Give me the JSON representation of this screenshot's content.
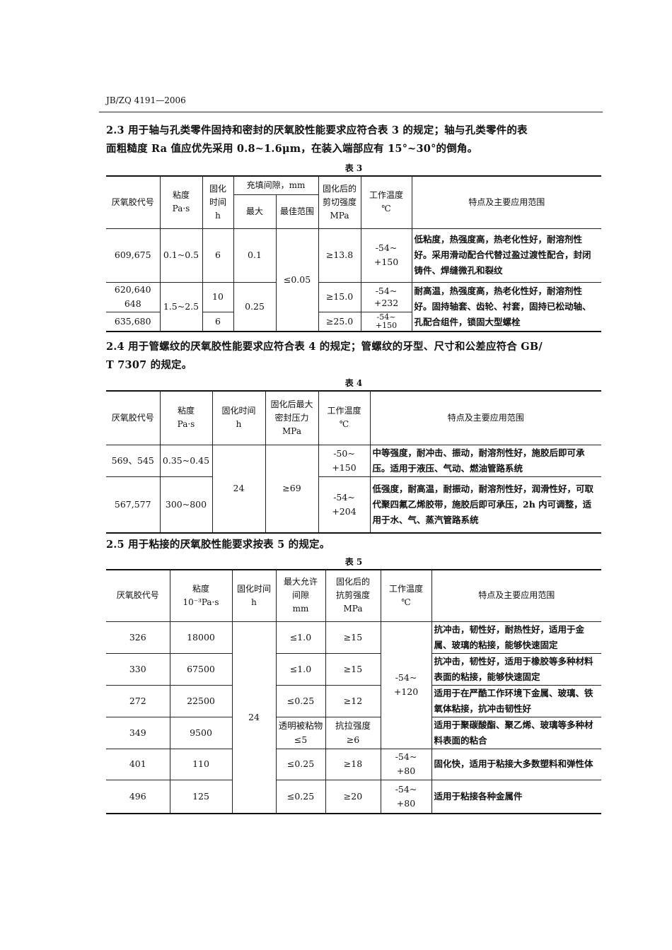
{
  "header": "JB/ZQ 4191—2006",
  "s23": {
    "line1": "2.3  用于轴与孔类零件固持和密封的厌氧胶性能要求应符合表 3 的规定；轴与孔类零件的表",
    "line2": "面粗糙度 Ra 值应优先采用 0.8~1.6μm，在装入端部应有 15°~30°的倒角。"
  },
  "t3": {
    "caption": "表 3",
    "h": {
      "code": "厌氧胶代号",
      "visc": "粘度",
      "visc_u": "Pa·s",
      "time": "固化",
      "time2": "时间",
      "time_u": "h",
      "gap": "充填间隙，mm",
      "max": "最大",
      "best": "最佳范围",
      "shear": "固化后的",
      "shear2": "剪切强度",
      "shear_u": "MPa",
      "temp": "工作温度",
      "temp_u": "℃",
      "desc": "特点及主要应用范围"
    },
    "r1": {
      "code": "609,675",
      "visc": "0.1~0.5",
      "time": "6",
      "max": "0.1",
      "best": "≤0.05",
      "shear": "≥13.8",
      "temp": "-54~",
      "temp2": "+150",
      "desc": "低粘度，热强度高，热老化性好，耐溶剂性好。采用滑动配合代替过盈过渡性配合，封闭铸件、焊缝微孔和裂纹"
    },
    "r2": {
      "code": "620,640",
      "code2": "648",
      "visc": "1.5~2.5",
      "time": "10",
      "max": "0.25",
      "shear": "≥15.0",
      "temp": "-54~",
      "temp2": "+232",
      "desc": "耐高温，热强度高，热老化性好，耐溶剂性好。固持轴套、齿轮、衬套，固持已松动轴、孔配合组件，锁固大型螺栓"
    },
    "r3": {
      "code": "635,680",
      "time": "6",
      "shear": "≥25.0",
      "temp": "-54~",
      "temp2": "+150"
    }
  },
  "s24": {
    "line1": "2.4  用于管螺纹的厌氧胶性能要求应符合表 4 的规定；管螺纹的牙型、尺寸和公差应符合 GB/",
    "line2": "T 7307 的规定。"
  },
  "t4": {
    "caption": "表 4",
    "h": {
      "code": "厌氧胶代号",
      "visc": "粘度",
      "visc_u": "Pa·s",
      "time": "固化时间",
      "time_u": "h",
      "press": "固化后最大",
      "press2": "密封压力",
      "press_u": "MPa",
      "temp": "工作温度",
      "temp_u": "℃",
      "desc": "特点及主要应用范围"
    },
    "r1": {
      "code": "569、545",
      "visc": "0.35~0.45",
      "time": "24",
      "press": "≥69",
      "temp": "-50~",
      "temp2": "+150",
      "desc": "中等强度，耐冲击、振动，耐溶剂性好，施胶后即可承压。适用于液压、气动、燃油管路系统"
    },
    "r2": {
      "code": "567,577",
      "visc": "300~800",
      "temp": "-54~",
      "temp2": "+204",
      "desc": "低强度，耐高温，耐振动，耐溶剂性好，润滑性好，可取代聚四氟乙烯胶带，施胶后即可承压，2h 内可调整，适用于水、气、蒸汽管路系统"
    }
  },
  "s25": {
    "line1": "2.5  用于粘接的厌氧胶性能要求按表 5 的规定。"
  },
  "t5": {
    "caption": "表 5",
    "h": {
      "code": "厌氧胶代号",
      "visc": "粘度",
      "visc_u": "10⁻³Pa·s",
      "time": "固化时间",
      "time_u": "h",
      "gap": "最大允许",
      "gap2": "间隙",
      "gap_u": "mm",
      "shear": "固化后的",
      "shear2": "抗剪强度",
      "shear_u": "MPa",
      "temp": "工作温度",
      "temp_u": "℃",
      "desc": "特点及主要应用范围"
    },
    "time": "24",
    "temp_a": "-54~",
    "temp_a2": "+120",
    "rows": [
      {
        "code": "326",
        "visc": "18000",
        "gap": "≤1.0",
        "shear": "≥15",
        "desc": "抗冲击，韧性好，耐热性好，适用于金属、玻璃的粘接，能够快速固定"
      },
      {
        "code": "330",
        "visc": "67500",
        "gap": "≤1.0",
        "shear": "≥15",
        "desc": "抗冲击，韧性好，适用于橡胶等多种材料表面的粘接，能够快速固定"
      },
      {
        "code": "272",
        "visc": "22500",
        "gap": "≤0.25",
        "shear": "≥12",
        "desc": "适用于在严酷工作环境下金属、玻璃、铁氧体粘接，抗冲击韧性好"
      },
      {
        "code": "349",
        "visc": "9500",
        "gap": "透明被粘物",
        "gap2": "≤5",
        "shear": "抗拉强度",
        "shear2": "≥6",
        "desc": "适用于聚碳酸酯、聚乙烯、玻璃等多种材料表面的粘合"
      },
      {
        "code": "401",
        "visc": "110",
        "gap": "≤0.25",
        "shear": "≥18",
        "temp": "-54~",
        "temp2": "+80",
        "desc": "固化快，适用于粘接大多数塑料和弹性体"
      },
      {
        "code": "496",
        "visc": "125",
        "gap": "≤0.25",
        "shear": "≥20",
        "temp": "-54~",
        "temp2": "+80",
        "desc": "适用于粘接各种金属件"
      }
    ]
  }
}
